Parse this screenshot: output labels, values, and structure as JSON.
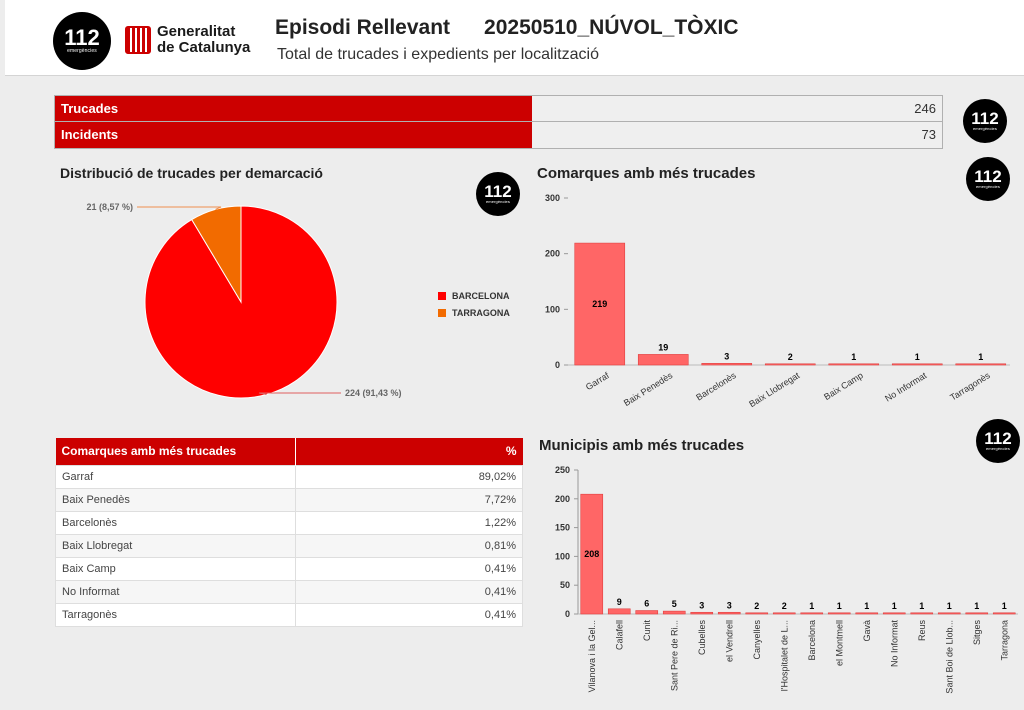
{
  "header": {
    "logo_number": "112",
    "logo_subtext": "emergències",
    "gencat_line1": "Generalitat",
    "gencat_line2": "de Catalunya",
    "episode_label": "Episodi Rellevant",
    "episode_code": "20250510_NÚVOL_TÒXIC",
    "subtitle": "Total de trucades i expedients per localització"
  },
  "summary": [
    {
      "label": "Trucades",
      "value": "246"
    },
    {
      "label": "Incidents",
      "value": "73"
    }
  ],
  "pie": {
    "title": "Distribució de trucades per demarcació",
    "chart_data": {
      "type": "pie",
      "slices": [
        {
          "name": "BARCELONA",
          "value": 224,
          "label": "224 (91,43 %)",
          "color": "#ff0000"
        },
        {
          "name": "TARRAGONA",
          "value": 21,
          "label": "21 (8,57 %)",
          "color": "#f26b00"
        }
      ]
    }
  },
  "comarques_chart": {
    "title": "Comarques amb més trucades",
    "chart_data": {
      "type": "bar",
      "categories": [
        "Garraf",
        "Baix Penedès",
        "Barcelonès",
        "Baix Llobregat",
        "Baix Camp",
        "No Informat",
        "Tarragonès"
      ],
      "values": [
        219,
        19,
        3,
        2,
        1,
        1,
        1
      ],
      "ylim": [
        0,
        300
      ],
      "yticks": [
        0,
        100,
        200,
        300
      ],
      "color": "#ff6666"
    }
  },
  "comarques_table": {
    "headers": [
      "Comarques amb més trucades",
      "%"
    ],
    "rows": [
      [
        "Garraf",
        "89,02%"
      ],
      [
        "Baix Penedès",
        "7,72%"
      ],
      [
        "Barcelonès",
        "1,22%"
      ],
      [
        "Baix Llobregat",
        "0,81%"
      ],
      [
        "Baix Camp",
        "0,41%"
      ],
      [
        "No Informat",
        "0,41%"
      ],
      [
        "Tarragonès",
        "0,41%"
      ]
    ]
  },
  "municipis_chart": {
    "title": "Municipis amb més trucades",
    "chart_data": {
      "type": "bar",
      "categories": [
        "Vilanova i la Gel...",
        "Calafell",
        "Cunit",
        "Sant Pere de Ri...",
        "Cubelles",
        "el Vendrell",
        "Canyelles",
        "l'Hospitalet de L...",
        "Barcelona",
        "el Montmell",
        "Gavà",
        "No Informat",
        "Reus",
        "Sant Boi de Llob...",
        "Sitges",
        "Tarragona"
      ],
      "values": [
        208,
        9,
        6,
        5,
        3,
        3,
        2,
        2,
        1,
        1,
        1,
        1,
        1,
        1,
        1,
        1
      ],
      "ylim": [
        0,
        250
      ],
      "yticks": [
        0,
        50,
        100,
        150,
        200,
        250
      ],
      "color": "#ff6666"
    }
  },
  "colors": {
    "brand_red": "#cc0000",
    "bar": "#ff6666",
    "pie_barcelona": "#ff0000",
    "pie_tarragona": "#f26b00"
  }
}
